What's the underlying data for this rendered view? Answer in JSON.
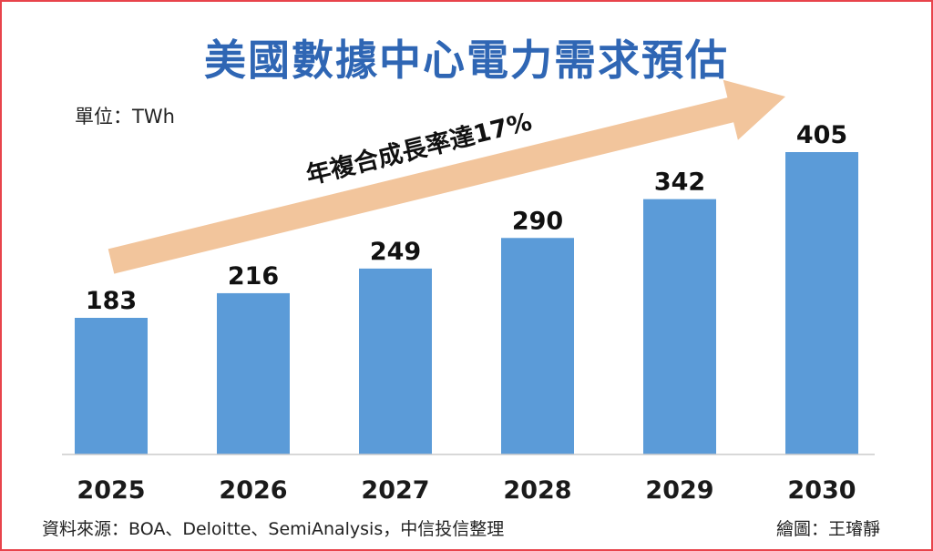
{
  "title": "美國數據中心電力需求預估",
  "unit": "單位：TWh",
  "source": "資料來源：BOA、Deloitte、SemiAnalysis，中信投信整理",
  "credit": "繪圖：王璿靜",
  "colors": {
    "bar": "#5b9bd8",
    "arrow": "#f2c59c",
    "title": "#2f66b4",
    "frame": "#e8434b"
  },
  "chart_data": {
    "type": "bar",
    "title": "美國數據中心電力需求預估",
    "xlabel": "",
    "ylabel": "TWh",
    "categories": [
      "2025",
      "2026",
      "2027",
      "2028",
      "2029",
      "2030"
    ],
    "values": [
      183,
      216,
      249,
      290,
      342,
      405
    ],
    "ylim": [
      0,
      405
    ],
    "annotation": "年複合成長率達17%",
    "grid": false
  }
}
